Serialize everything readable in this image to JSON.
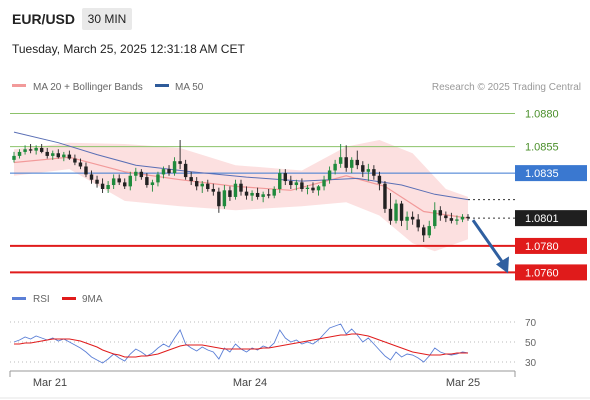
{
  "header": {
    "symbol": "EUR/USD",
    "timeframe": "30 MIN",
    "datetime": "Tuesday, March 25, 2025 12:31:18 AM CET"
  },
  "legend": {
    "items": [
      {
        "label": "MA 20 + Bollinger Bands",
        "color": "#f29a9a"
      },
      {
        "label": "MA 50",
        "color": "#2e5b9a"
      }
    ],
    "credit": "Research © 2025 Trading Central"
  },
  "rsi_legend": {
    "items": [
      {
        "label": "RSI",
        "color": "#5b7fd6"
      },
      {
        "label": "9MA",
        "color": "#e01b1b"
      }
    ]
  },
  "colors": {
    "bull": "#1f8a3c",
    "bear": "#222222",
    "resistance": "#8cc26a",
    "pivot": "#3a78d0",
    "support": "#e01b1b",
    "arrow": "#2f5fa0",
    "bollinger_fill": "#fbdada",
    "ma20": "#f29a9a",
    "ma50": "#5a6fb5"
  },
  "chart_data": {
    "type": "candlestick",
    "title": "EUR/USD",
    "timeframe": "30 MIN",
    "x_labels": [
      "Mar 21",
      "Mar 24",
      "Mar 25"
    ],
    "ylim": [
      1.0752,
      1.0894
    ],
    "levels": [
      {
        "value": 1.088,
        "label": "1.0880",
        "kind": "resistance"
      },
      {
        "value": 1.0855,
        "label": "1.0855",
        "kind": "resistance"
      },
      {
        "value": 1.0835,
        "label": "1.0835",
        "kind": "pivot"
      },
      {
        "value": 1.078,
        "label": "1.0780",
        "kind": "support"
      },
      {
        "value": 1.076,
        "label": "1.0760",
        "kind": "support"
      }
    ],
    "current_price": {
      "value": 1.0801,
      "label": "1.0801"
    },
    "forecast_arrow": {
      "from": 1.0801,
      "to": 1.076,
      "direction": "down"
    },
    "ohlc": [
      [
        1.0845,
        1.0851,
        1.0843,
        1.0848
      ],
      [
        1.0848,
        1.0853,
        1.0846,
        1.0851
      ],
      [
        1.0851,
        1.0856,
        1.0849,
        1.0853
      ],
      [
        1.0853,
        1.0857,
        1.085,
        1.0852
      ],
      [
        1.0852,
        1.0856,
        1.0849,
        1.0854
      ],
      [
        1.0854,
        1.0857,
        1.085,
        1.0851
      ],
      [
        1.0851,
        1.0854,
        1.0846,
        1.0848
      ],
      [
        1.0848,
        1.0852,
        1.0845,
        1.085
      ],
      [
        1.085,
        1.0853,
        1.0846,
        1.0847
      ],
      [
        1.0847,
        1.0851,
        1.0844,
        1.0849
      ],
      [
        1.0849,
        1.0852,
        1.0845,
        1.0846
      ],
      [
        1.0846,
        1.0849,
        1.0841,
        1.0843
      ],
      [
        1.0843,
        1.0846,
        1.0838,
        1.084
      ],
      [
        1.084,
        1.0843,
        1.0832,
        1.0834
      ],
      [
        1.0834,
        1.0837,
        1.0827,
        1.083
      ],
      [
        1.083,
        1.0833,
        1.0824,
        1.0827
      ],
      [
        1.0827,
        1.0831,
        1.082,
        1.0823
      ],
      [
        1.0823,
        1.0829,
        1.082,
        1.0826
      ],
      [
        1.0826,
        1.0834,
        1.0823,
        1.0831
      ],
      [
        1.0831,
        1.0834,
        1.0826,
        1.0828
      ],
      [
        1.0828,
        1.0831,
        1.0823,
        1.0825
      ],
      [
        1.0825,
        1.0836,
        1.0822,
        1.0833
      ],
      [
        1.0833,
        1.0839,
        1.0829,
        1.0836
      ],
      [
        1.0836,
        1.0838,
        1.083,
        1.0832
      ],
      [
        1.0832,
        1.0835,
        1.0824,
        1.0826
      ],
      [
        1.0826,
        1.083,
        1.0821,
        1.0828
      ],
      [
        1.0828,
        1.0836,
        1.0825,
        1.0834
      ],
      [
        1.0834,
        1.084,
        1.0831,
        1.0838
      ],
      [
        1.0838,
        1.0841,
        1.0833,
        1.0835
      ],
      [
        1.0835,
        1.0847,
        1.0833,
        1.0844
      ],
      [
        1.0844,
        1.086,
        1.0838,
        1.0842
      ],
      [
        1.0842,
        1.0845,
        1.083,
        1.0832
      ],
      [
        1.0832,
        1.0836,
        1.0826,
        1.0829
      ],
      [
        1.0829,
        1.0832,
        1.0822,
        1.0825
      ],
      [
        1.0825,
        1.0829,
        1.082,
        1.0827
      ],
      [
        1.0827,
        1.083,
        1.0821,
        1.0823
      ],
      [
        1.0823,
        1.0827,
        1.0818,
        1.0821
      ],
      [
        1.0821,
        1.0824,
        1.0805,
        1.081
      ],
      [
        1.081,
        1.0826,
        1.0808,
        1.0822
      ],
      [
        1.0822,
        1.0825,
        1.0814,
        1.0817
      ],
      [
        1.0817,
        1.083,
        1.0815,
        1.0827
      ],
      [
        1.0827,
        1.083,
        1.0818,
        1.0821
      ],
      [
        1.0821,
        1.0825,
        1.0815,
        1.0818
      ],
      [
        1.0818,
        1.0822,
        1.0814,
        1.082
      ],
      [
        1.082,
        1.0824,
        1.0815,
        1.0817
      ],
      [
        1.0817,
        1.0821,
        1.0813,
        1.0819
      ],
      [
        1.0819,
        1.0823,
        1.0816,
        1.0818
      ],
      [
        1.0818,
        1.0825,
        1.0816,
        1.0823
      ],
      [
        1.0823,
        1.0838,
        1.082,
        1.0835
      ],
      [
        1.0835,
        1.0838,
        1.0826,
        1.0829
      ],
      [
        1.0829,
        1.0833,
        1.0823,
        1.0826
      ],
      [
        1.0826,
        1.083,
        1.0822,
        1.0828
      ],
      [
        1.0828,
        1.0831,
        1.0821,
        1.0823
      ],
      [
        1.0823,
        1.0826,
        1.0819,
        1.0824
      ],
      [
        1.0824,
        1.0828,
        1.082,
        1.0822
      ],
      [
        1.0822,
        1.0826,
        1.0818,
        1.0825
      ],
      [
        1.0825,
        1.0833,
        1.0822,
        1.083
      ],
      [
        1.083,
        1.084,
        1.0827,
        1.0837
      ],
      [
        1.0837,
        1.0845,
        1.0834,
        1.0842
      ],
      [
        1.0842,
        1.0857,
        1.0839,
        1.0847
      ],
      [
        1.0847,
        1.0856,
        1.0836,
        1.0839
      ],
      [
        1.0839,
        1.0847,
        1.0835,
        1.0845
      ],
      [
        1.0845,
        1.0852,
        1.0838,
        1.0841
      ],
      [
        1.0841,
        1.0844,
        1.0832,
        1.0836
      ],
      [
        1.0836,
        1.0842,
        1.0829,
        1.0838
      ],
      [
        1.0838,
        1.0841,
        1.083,
        1.0833
      ],
      [
        1.0833,
        1.0836,
        1.0822,
        1.0827
      ],
      [
        1.0827,
        1.0829,
        1.0805,
        1.0808
      ],
      [
        1.0808,
        1.082,
        1.0796,
        1.0799
      ],
      [
        1.0799,
        1.0815,
        1.0797,
        1.0812
      ],
      [
        1.0812,
        1.0814,
        1.0795,
        1.0799
      ],
      [
        1.0799,
        1.0806,
        1.0792,
        1.0802
      ],
      [
        1.0802,
        1.0806,
        1.0796,
        1.08
      ],
      [
        1.08,
        1.0804,
        1.0791,
        1.0794
      ],
      [
        1.0794,
        1.0796,
        1.0783,
        1.0788
      ],
      [
        1.0788,
        1.0799,
        1.0786,
        1.0795
      ],
      [
        1.0795,
        1.0813,
        1.0793,
        1.0807
      ],
      [
        1.0807,
        1.081,
        1.0799,
        1.0803
      ],
      [
        1.0803,
        1.0806,
        1.0798,
        1.0801
      ],
      [
        1.0801,
        1.0805,
        1.0797,
        1.0799
      ],
      [
        1.0799,
        1.0803,
        1.0796,
        1.08
      ],
      [
        1.08,
        1.0804,
        1.0798,
        1.0802
      ],
      [
        1.0802,
        1.0804,
        1.0799,
        1.0801
      ]
    ],
    "ma20": [
      [
        0,
        1.0843
      ],
      [
        10,
        1.0847
      ],
      [
        20,
        1.0836
      ],
      [
        30,
        1.083
      ],
      [
        40,
        1.0825
      ],
      [
        50,
        1.0822
      ],
      [
        60,
        1.0833
      ],
      [
        67,
        1.0825
      ],
      [
        74,
        1.0806
      ],
      [
        82,
        1.0801
      ]
    ],
    "ma50": [
      [
        0,
        1.0866
      ],
      [
        8,
        1.0858
      ],
      [
        15,
        1.0849
      ],
      [
        22,
        1.0841
      ],
      [
        32,
        1.0836
      ],
      [
        42,
        1.0832
      ],
      [
        52,
        1.0829
      ],
      [
        62,
        1.0831
      ],
      [
        70,
        1.0826
      ],
      [
        76,
        1.0819
      ],
      [
        82,
        1.0815
      ]
    ],
    "bollinger_upper": [
      [
        0,
        1.0853
      ],
      [
        10,
        1.0858
      ],
      [
        20,
        1.0857
      ],
      [
        30,
        1.0854
      ],
      [
        40,
        1.0841
      ],
      [
        52,
        1.0837
      ],
      [
        60,
        1.0855
      ],
      [
        66,
        1.086
      ],
      [
        72,
        1.085
      ],
      [
        78,
        1.0823
      ],
      [
        82,
        1.0817
      ]
    ],
    "bollinger_lower": [
      [
        0,
        1.0833
      ],
      [
        10,
        1.0838
      ],
      [
        20,
        1.0814
      ],
      [
        30,
        1.081
      ],
      [
        40,
        1.0807
      ],
      [
        52,
        1.081
      ],
      [
        60,
        1.0813
      ],
      [
        66,
        1.0803
      ],
      [
        72,
        1.0782
      ],
      [
        76,
        1.0776
      ],
      [
        82,
        1.0785
      ]
    ],
    "rsi": {
      "ylim": [
        20,
        78
      ],
      "ticks": [
        70,
        50,
        30
      ],
      "rsi": [
        50,
        52,
        55,
        53,
        56,
        54,
        52,
        54,
        51,
        53,
        50,
        47,
        44,
        40,
        35,
        32,
        29,
        33,
        38,
        34,
        31,
        38,
        43,
        40,
        36,
        39,
        44,
        48,
        45,
        54,
        62,
        48,
        44,
        41,
        45,
        42,
        40,
        33,
        44,
        40,
        48,
        43,
        40,
        44,
        42,
        46,
        44,
        49,
        62,
        54,
        50,
        52,
        48,
        50,
        48,
        52,
        58,
        64,
        66,
        68,
        58,
        63,
        57,
        50,
        54,
        48,
        42,
        36,
        32,
        40,
        35,
        38,
        37,
        34,
        30,
        36,
        44,
        40,
        38,
        37,
        38,
        40,
        39
      ],
      "ma9": [
        48,
        48,
        49,
        49,
        50,
        51,
        52,
        53,
        53,
        53,
        53,
        52,
        51,
        49,
        47,
        45,
        42,
        40,
        38,
        37,
        35,
        35,
        35,
        36,
        36,
        37,
        38,
        40,
        42,
        44,
        46,
        47,
        47,
        47,
        47,
        46,
        45,
        44,
        43,
        43,
        43,
        43,
        43,
        43,
        43,
        44,
        44,
        45,
        46,
        47,
        48,
        49,
        50,
        51,
        52,
        53,
        54,
        55,
        56,
        57,
        57,
        58,
        58,
        57,
        56,
        54,
        52,
        50,
        48,
        46,
        44,
        42,
        40,
        39,
        38,
        37,
        37,
        37,
        38,
        38,
        39,
        39,
        39
      ]
    }
  }
}
